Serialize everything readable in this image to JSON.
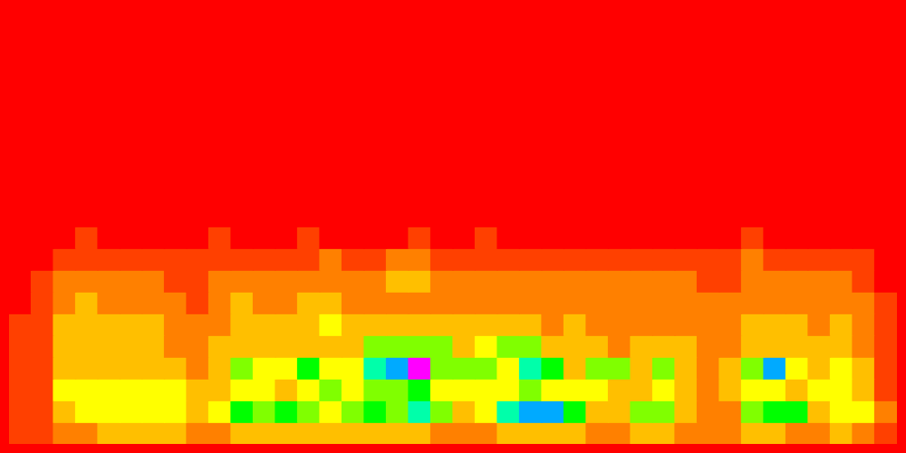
{
  "chart_data": {
    "type": "heatmap",
    "cells": [
      [
        1,
        1,
        2,
        2,
        3,
        3,
        3,
        3,
        2,
        2,
        3,
        3,
        3,
        3,
        3,
        3,
        3,
        3,
        3,
        2,
        2,
        2,
        3,
        3,
        3,
        3,
        2,
        2,
        3,
        3,
        2,
        2,
        2,
        3,
        3,
        2,
        2,
        3,
        2,
        1
      ],
      [
        1,
        1,
        3,
        4,
        4,
        4,
        4,
        4,
        3,
        4,
        6,
        5,
        6,
        5,
        4,
        5,
        6,
        5,
        7,
        5,
        3,
        4,
        7,
        8,
        8,
        6,
        3,
        3,
        5,
        5,
        3,
        2,
        2,
        5,
        6,
        6,
        3,
        4,
        4,
        2
      ],
      [
        1,
        1,
        4,
        4,
        4,
        4,
        4,
        4,
        3,
        3,
        4,
        4,
        3,
        4,
        5,
        4,
        5,
        5,
        6,
        4,
        4,
        4,
        4,
        5,
        4,
        4,
        4,
        3,
        3,
        4,
        3,
        2,
        3,
        4,
        4,
        3,
        4,
        4,
        3,
        1
      ],
      [
        1,
        1,
        3,
        3,
        3,
        3,
        3,
        3,
        2,
        3,
        5,
        4,
        4,
        6,
        4,
        4,
        7,
        8,
        10,
        5,
        5,
        5,
        4,
        7,
        6,
        3,
        5,
        5,
        3,
        5,
        3,
        2,
        3,
        5,
        8,
        4,
        3,
        4,
        3,
        1
      ],
      [
        1,
        1,
        3,
        3,
        3,
        3,
        3,
        2,
        2,
        3,
        3,
        3,
        3,
        3,
        3,
        3,
        5,
        5,
        5,
        5,
        3,
        4,
        5,
        5,
        3,
        3,
        3,
        2,
        3,
        3,
        3,
        2,
        2,
        3,
        3,
        3,
        3,
        3,
        2,
        1
      ],
      [
        1,
        1,
        3,
        3,
        3,
        3,
        3,
        2,
        2,
        2,
        3,
        3,
        3,
        3,
        4,
        3,
        3,
        3,
        3,
        3,
        3,
        3,
        3,
        3,
        2,
        3,
        2,
        2,
        2,
        2,
        2,
        2,
        2,
        3,
        3,
        3,
        2,
        3,
        2,
        1
      ],
      [
        0,
        1,
        2,
        3,
        2,
        2,
        2,
        2,
        1,
        2,
        3,
        2,
        2,
        3,
        3,
        2,
        2,
        2,
        2,
        2,
        2,
        2,
        2,
        2,
        2,
        2,
        2,
        2,
        2,
        2,
        2,
        2,
        2,
        2,
        2,
        2,
        2,
        2,
        2,
        1
      ],
      [
        0,
        1,
        2,
        2,
        2,
        2,
        2,
        1,
        1,
        2,
        2,
        2,
        2,
        2,
        2,
        2,
        2,
        3,
        3,
        2,
        2,
        2,
        2,
        2,
        2,
        2,
        2,
        2,
        2,
        2,
        2,
        1,
        1,
        2,
        2,
        2,
        2,
        2,
        1,
        0
      ],
      [
        0,
        0,
        1,
        1,
        1,
        1,
        1,
        1,
        1,
        1,
        1,
        1,
        1,
        1,
        2,
        1,
        1,
        2,
        2,
        1,
        1,
        1,
        1,
        1,
        1,
        1,
        1,
        1,
        1,
        1,
        1,
        1,
        1,
        2,
        1,
        1,
        1,
        1,
        1,
        0
      ],
      [
        0,
        0,
        0,
        1,
        0,
        0,
        0,
        0,
        0,
        1,
        0,
        0,
        0,
        1,
        0,
        0,
        0,
        0,
        1,
        0,
        0,
        1,
        0,
        0,
        0,
        0,
        0,
        0,
        0,
        0,
        0,
        0,
        0,
        1,
        0,
        0,
        0,
        0,
        0,
        0
      ],
      [
        0,
        0,
        0,
        0,
        0,
        0,
        0,
        0,
        0,
        0,
        0,
        0,
        0,
        0,
        0,
        0,
        0,
        0,
        0,
        0,
        0,
        0,
        0,
        0,
        0,
        0,
        0,
        0,
        0,
        0,
        0,
        0,
        0,
        0,
        0,
        0,
        0,
        0,
        0,
        0
      ],
      [
        0,
        0,
        0,
        0,
        0,
        0,
        0,
        0,
        0,
        0,
        0,
        0,
        0,
        0,
        0,
        0,
        0,
        0,
        0,
        0,
        0,
        0,
        0,
        0,
        0,
        0,
        0,
        0,
        0,
        0,
        0,
        0,
        0,
        0,
        0,
        0,
        0,
        0,
        0,
        0
      ],
      [
        0,
        0,
        0,
        0,
        0,
        0,
        0,
        0,
        0,
        0,
        0,
        0,
        0,
        0,
        0,
        0,
        0,
        0,
        0,
        0,
        0,
        0,
        0,
        0,
        0,
        0,
        0,
        0,
        0,
        0,
        0,
        0,
        0,
        0,
        0,
        0,
        0,
        0,
        0,
        0
      ],
      [
        0,
        0,
        0,
        0,
        0,
        0,
        0,
        0,
        0,
        0,
        0,
        0,
        0,
        0,
        0,
        0,
        0,
        0,
        0,
        0,
        0,
        0,
        0,
        0,
        0,
        0,
        0,
        0,
        0,
        0,
        0,
        0,
        0,
        0,
        0,
        0,
        0,
        0,
        0,
        0
      ],
      [
        0,
        0,
        0,
        0,
        0,
        0,
        0,
        0,
        0,
        0,
        0,
        0,
        0,
        0,
        0,
        0,
        0,
        0,
        0,
        0,
        0,
        0,
        0,
        0,
        0,
        0,
        0,
        0,
        0,
        0,
        0,
        0,
        0,
        0,
        0,
        0,
        0,
        0,
        0,
        0
      ],
      [
        0,
        0,
        0,
        0,
        0,
        0,
        0,
        0,
        0,
        0,
        0,
        0,
        0,
        0,
        0,
        0,
        0,
        0,
        0,
        0,
        0,
        0,
        0,
        0,
        0,
        0,
        0,
        0,
        0,
        0,
        0,
        0,
        0,
        0,
        0,
        0,
        0,
        0,
        0,
        0
      ],
      [
        0,
        0,
        0,
        0,
        0,
        0,
        0,
        0,
        0,
        0,
        0,
        0,
        0,
        0,
        0,
        0,
        0,
        0,
        0,
        0,
        0,
        0,
        0,
        0,
        0,
        0,
        0,
        0,
        0,
        0,
        0,
        0,
        0,
        0,
        0,
        0,
        0,
        0,
        0,
        0
      ],
      [
        0,
        0,
        0,
        0,
        0,
        0,
        0,
        0,
        0,
        0,
        0,
        0,
        0,
        0,
        0,
        0,
        0,
        0,
        0,
        0,
        0,
        0,
        0,
        0,
        0,
        0,
        0,
        0,
        0,
        0,
        0,
        0,
        0,
        0,
        0,
        0,
        0,
        0,
        0,
        0
      ],
      [
        0,
        0,
        0,
        0,
        0,
        0,
        0,
        0,
        0,
        0,
        0,
        0,
        0,
        0,
        0,
        0,
        0,
        0,
        0,
        0,
        0,
        0,
        0,
        0,
        0,
        0,
        0,
        0,
        0,
        0,
        0,
        0,
        0,
        0,
        0,
        0,
        0,
        0,
        0,
        0
      ],
      [
        0,
        0,
        0,
        0,
        0,
        0,
        0,
        0,
        0,
        0,
        0,
        0,
        0,
        0,
        0,
        0,
        0,
        0,
        0,
        0,
        0,
        0,
        0,
        0,
        0,
        0,
        0,
        0,
        0,
        0,
        0,
        0,
        0,
        0,
        0,
        0,
        0,
        0,
        0,
        0
      ]
    ],
    "xlim": [
      0,
      40
    ],
    "ylim": [
      0,
      20
    ],
    "zlim": [
      0,
      10
    ],
    "tick_labels": false,
    "grid": false
  }
}
